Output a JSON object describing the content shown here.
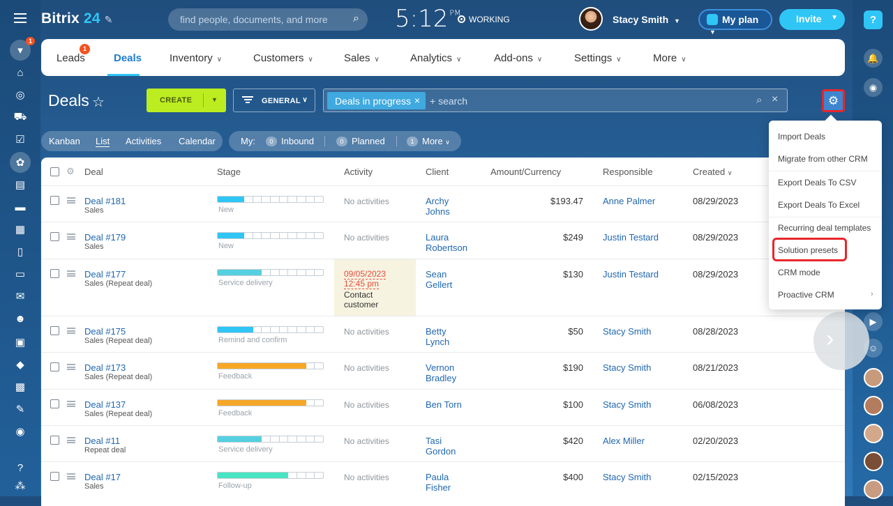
{
  "app": {
    "brand_name": "Bitrix",
    "brand_num": "24",
    "search_placeholder": "find people, documents, and more",
    "clock": "5:12",
    "clock_suffix": "PM",
    "status": "WORKING",
    "user": "Stacy Smith",
    "my_plan": "My plan",
    "invite": "Invite"
  },
  "nav": {
    "items": [
      "Leads",
      "Deals",
      "Inventory",
      "Customers",
      "Sales",
      "Analytics",
      "Add-ons",
      "Settings",
      "More"
    ],
    "leads_badge": "1",
    "active": "Deals"
  },
  "page": {
    "title": "Deals",
    "create": "CREATE",
    "filter_preset": "GENERAL",
    "filter_chip": "Deals in progress",
    "filter_search": "+ search"
  },
  "views": {
    "tabs": [
      "Kanban",
      "List",
      "Activities",
      "Calendar"
    ],
    "active": "List"
  },
  "counters": {
    "label": "My:",
    "inbound": "Inbound",
    "inbound_count": "0",
    "planned": "Planned",
    "planned_count": "0",
    "more": "More",
    "more_count": "1"
  },
  "table": {
    "headers": {
      "deal": "Deal",
      "stage": "Stage",
      "activity": "Activity",
      "client": "Client",
      "amount": "Amount/Currency",
      "responsible": "Responsible",
      "created": "Created"
    },
    "rows": [
      {
        "deal": "Deal #181",
        "sub": "Sales",
        "stage": "New",
        "activity": "No activities",
        "client1": "Archy",
        "client2": "Johns",
        "amount": "$193.47",
        "resp": "Anne Palmer",
        "created": "08/29/2023"
      },
      {
        "deal": "Deal #179",
        "sub": "Sales",
        "stage": "New",
        "activity": "No activities",
        "client1": "Laura",
        "client2": "Robertson",
        "amount": "$249",
        "resp": "Justin Testard",
        "created": "08/29/2023"
      },
      {
        "deal": "Deal #177",
        "sub": "Sales (Repeat deal)",
        "stage": "Service delivery",
        "act_date1": "09/05/2023",
        "act_date2": "12:45 pm",
        "act_text1": "Contact",
        "act_text2": "customer",
        "client1": "Sean",
        "client2": "Gellert",
        "amount": "$130",
        "resp": "Justin Testard",
        "created": "08/29/2023"
      },
      {
        "deal": "Deal #175",
        "sub": "Sales (Repeat deal)",
        "stage": "Remind and confirm",
        "activity": "No activities",
        "client1": "Betty",
        "client2": "Lynch",
        "amount": "$50",
        "resp": "Stacy Smith",
        "created": "08/28/2023"
      },
      {
        "deal": "Deal #173",
        "sub": "Sales (Repeat deal)",
        "stage": "Feedback",
        "activity": "No activities",
        "client1": "Vernon",
        "client2": "Bradley",
        "amount": "$190",
        "resp": "Stacy Smith",
        "created": "08/21/2023"
      },
      {
        "deal": "Deal #137",
        "sub": "Sales (Repeat deal)",
        "stage": "Feedback",
        "activity": "No activities",
        "client1": "Ben Torn",
        "client2": "",
        "amount": "$100",
        "resp": "Stacy Smith",
        "created": "06/08/2023"
      },
      {
        "deal": "Deal #11",
        "sub": "Repeat deal",
        "stage": "Service delivery",
        "activity": "No activities",
        "client1": "Tasi",
        "client2": "Gordon",
        "amount": "$420",
        "resp": "Alex Miller",
        "created": "02/20/2023"
      },
      {
        "deal": "Deal #17",
        "sub": "Sales",
        "stage": "Follow-up",
        "activity": "No activities",
        "client1": "Paula",
        "client2": "Fisher",
        "amount": "$400",
        "resp": "Stacy Smith",
        "created": "02/15/2023"
      }
    ]
  },
  "menu": {
    "items": [
      "Import Deals",
      "Migrate from other CRM",
      "Export Deals To CSV",
      "Export Deals To Excel",
      "Recurring deal templates",
      "Solution presets",
      "CRM mode",
      "Proactive CRM"
    ]
  },
  "colors": {
    "accent": "#2fc6f6",
    "create": "#bbed21",
    "highlight": "#e8262a",
    "link": "#2067b0"
  }
}
